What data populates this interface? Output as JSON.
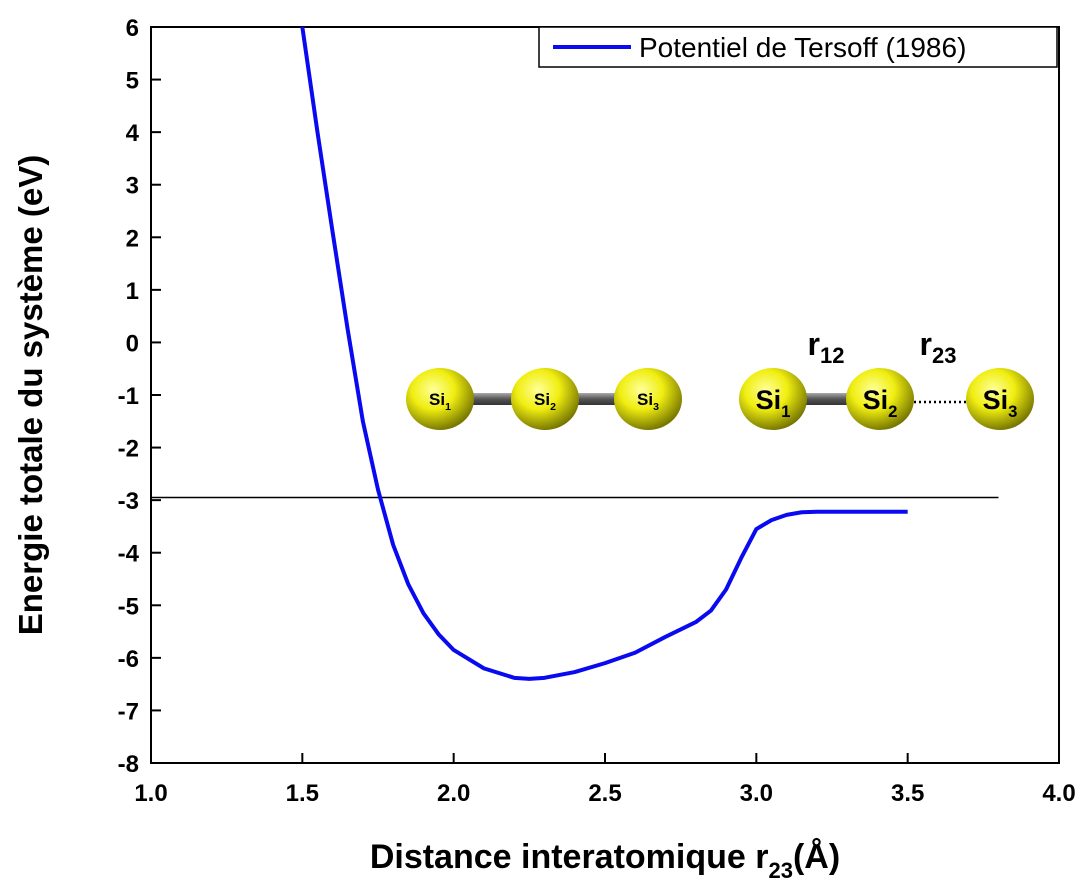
{
  "chart_data": {
    "type": "line",
    "ylabel": "Energie totale du système (eV)",
    "xlabel": {
      "text": "Distance interatomique r",
      "sub": "23",
      "unit": "(Å)"
    },
    "x": [
      1.5,
      1.55,
      1.6,
      1.65,
      1.7,
      1.75,
      1.8,
      1.85,
      1.9,
      1.95,
      2.0,
      2.1,
      2.2,
      2.25,
      2.3,
      2.4,
      2.5,
      2.6,
      2.7,
      2.8,
      2.85,
      2.9,
      2.95,
      3.0,
      3.05,
      3.1,
      3.15,
      3.2,
      3.3,
      3.4,
      3.5
    ],
    "series": [
      {
        "name": "Potentiel de Tersoff (1986)",
        "color": "#0a0af0",
        "values": [
          6,
          4.0,
          2.1,
          0.24,
          -1.5,
          -2.8,
          -3.85,
          -4.6,
          -5.15,
          -5.55,
          -5.85,
          -6.2,
          -6.38,
          -6.4,
          -6.38,
          -6.27,
          -6.1,
          -5.9,
          -5.6,
          -5.32,
          -5.1,
          -4.7,
          -4.1,
          -3.55,
          -3.38,
          -3.28,
          -3.23,
          -3.22,
          -3.22,
          -3.22,
          -3.22
        ]
      }
    ],
    "reference_line": {
      "y": -2.95,
      "x": [
        1.0,
        3.8
      ]
    },
    "xlim": [
      1.0,
      4.0
    ],
    "xticks": [
      {
        "value": 1.0,
        "label": "1.0"
      },
      {
        "value": 1.5,
        "label": "1.5"
      },
      {
        "value": 2.0,
        "label": "2.0"
      },
      {
        "value": 2.5,
        "label": "2.5"
      },
      {
        "value": 3.0,
        "label": "3.0"
      },
      {
        "value": 3.5,
        "label": "3.5"
      },
      {
        "value": 4.0,
        "label": "4.0"
      }
    ],
    "ylim": [
      -8,
      6
    ],
    "yticks": [
      -8,
      -7,
      -6,
      -5,
      -4,
      -3,
      -2,
      -1,
      0,
      1,
      2,
      3,
      4,
      5,
      6
    ],
    "legend": "top-right",
    "inset": {
      "molecules": [
        [
          {
            "label": "Si",
            "sub": "1"
          },
          {
            "label": "Si",
            "sub": "2"
          },
          {
            "label": "Si",
            "sub": "3"
          }
        ],
        [
          {
            "label": "Si",
            "sub": "1"
          },
          {
            "label": "Si",
            "sub": "2"
          },
          {
            "label": "Si",
            "sub": "3"
          }
        ]
      ],
      "distances": [
        {
          "label": "r",
          "sub": "12"
        },
        {
          "label": "r",
          "sub": "23"
        }
      ]
    }
  }
}
